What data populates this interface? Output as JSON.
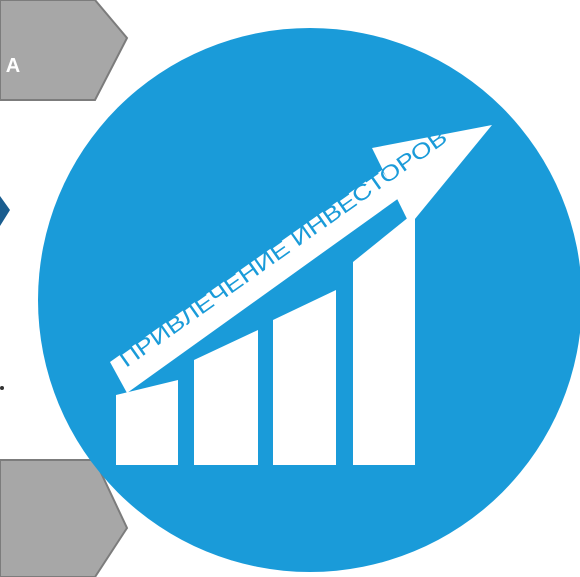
{
  "top_tab": {
    "label": "А"
  },
  "emblem": {
    "banner_text": "ПРИВЛЕЧЕНИЕ ИНВЕСТОРОВ",
    "circle_color": "#1a9bd9",
    "shape_color": "#ffffff"
  },
  "tabs": {
    "fill_color": "#a7a7a7",
    "edge_color": "#7c7c7c"
  },
  "decorations": {
    "left_arrow": "chevron-right-icon",
    "bullet": "dot-icon"
  }
}
